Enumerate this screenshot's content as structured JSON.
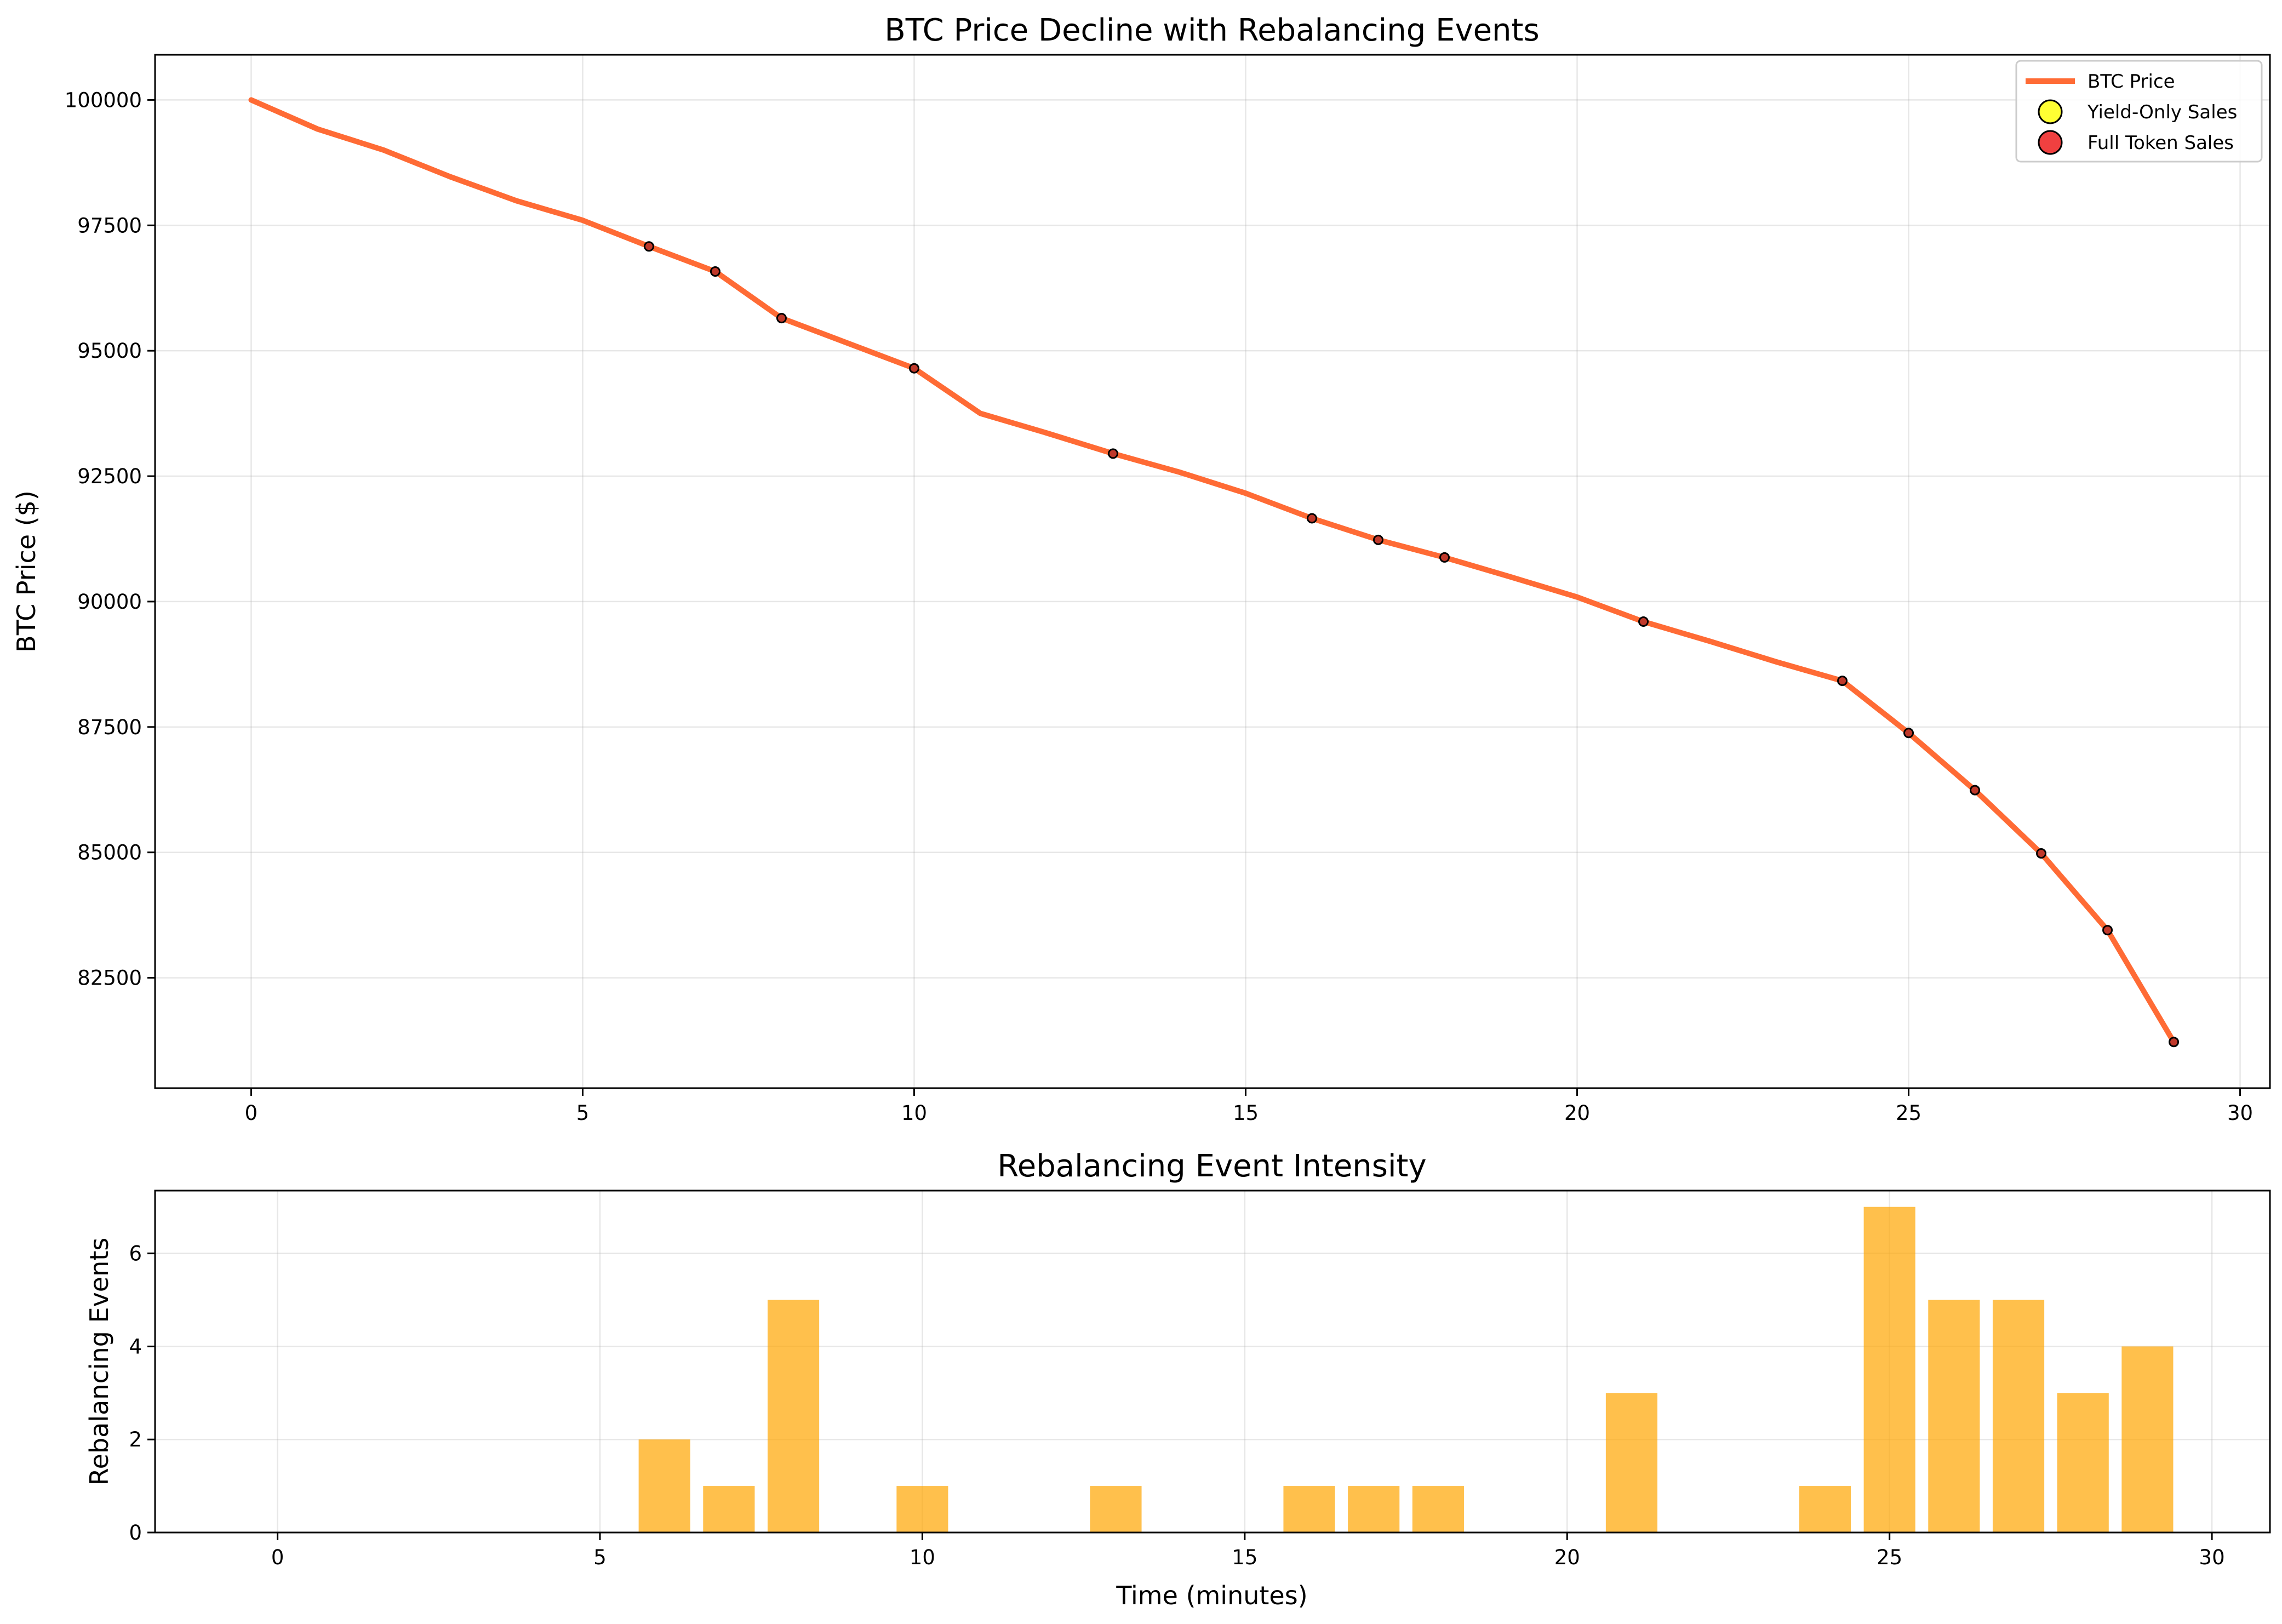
{
  "chart_data": [
    {
      "type": "line",
      "title": "BTC Price Decline with Rebalancing Events",
      "xlabel": "",
      "ylabel": "BTC Price ($)",
      "xlim": [
        -1.45,
        30.45
      ],
      "ylim": [
        80300,
        100900
      ],
      "grid": true,
      "legend": "top-right",
      "xticks": [
        0,
        5,
        10,
        15,
        20,
        25,
        30
      ],
      "yticks": [
        82500,
        85000,
        87500,
        90000,
        92500,
        95000,
        97500,
        100000
      ],
      "series": [
        {
          "name": "BTC Price",
          "color": "#ff6b35",
          "x": [
            0,
            1,
            2,
            3,
            4,
            5,
            6,
            7,
            8,
            9,
            10,
            11,
            12,
            13,
            14,
            15,
            16,
            17,
            18,
            19,
            20,
            21,
            22,
            23,
            24,
            25,
            26,
            27,
            28,
            29
          ],
          "y": [
            100000,
            99420,
            99000,
            98470,
            97990,
            97600,
            97080,
            96580,
            95650,
            95150,
            94650,
            93750,
            93360,
            92950,
            92580,
            92160,
            91660,
            91230,
            90880,
            90490,
            90090,
            89600,
            89210,
            88800,
            88420,
            87380,
            86240,
            84980,
            83450,
            81220
          ]
        }
      ],
      "markers": {
        "x": [
          6,
          7,
          8,
          10,
          13,
          16,
          17,
          18,
          21,
          24,
          25,
          26,
          27,
          28,
          29
        ],
        "y": [
          97080,
          96580,
          95650,
          94650,
          92950,
          91660,
          91230,
          90880,
          89600,
          88420,
          87380,
          86240,
          84980,
          83450,
          81220
        ]
      },
      "legend_entries": [
        {
          "label": "BTC Price",
          "kind": "line",
          "color": "#ff6b35"
        },
        {
          "label": "Yield-Only Sales",
          "kind": "marker",
          "color": "#ffff33"
        },
        {
          "label": "Full Token Sales",
          "kind": "marker",
          "color": "#f04040"
        }
      ]
    },
    {
      "type": "bar",
      "title": "Rebalancing Event Intensity",
      "xlabel": "Time (minutes)",
      "ylabel": "Rebalancing Events",
      "xlim": [
        -1.9,
        30.9
      ],
      "ylim": [
        0,
        7.35
      ],
      "grid": true,
      "color": "#ffa500",
      "xticks": [
        0,
        5,
        10,
        15,
        20,
        25,
        30
      ],
      "yticks": [
        0,
        2,
        4,
        6
      ],
      "x": [
        6,
        7,
        8,
        10,
        13,
        16,
        17,
        18,
        21,
        24,
        25,
        26,
        27,
        28,
        29
      ],
      "values": [
        2,
        1,
        5,
        1,
        1,
        1,
        1,
        1,
        3,
        1,
        7,
        5,
        5,
        3,
        4
      ]
    }
  ]
}
